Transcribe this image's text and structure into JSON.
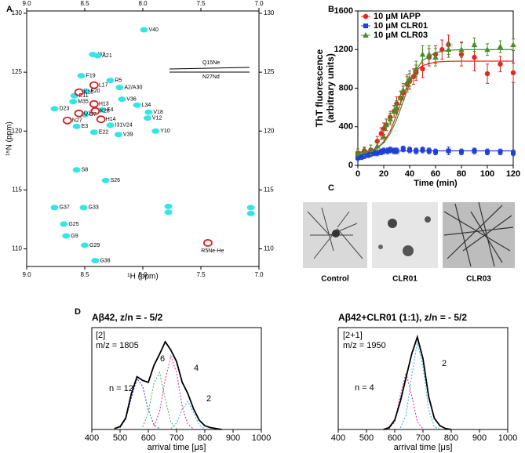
{
  "panel_labels": [
    "A",
    "B",
    "C",
    "D"
  ],
  "micrographs": {
    "labels": [
      "Control",
      "CLR01",
      "CLR03"
    ]
  },
  "chart_data": [
    {
      "type": "scatter",
      "xlabel": "¹H (ppm)",
      "ylabel": "¹⁵N (ppm)",
      "xlim": [
        9,
        7
      ],
      "ylim": [
        108.5,
        130.2
      ],
      "xticks": [
        {
          "value": 9,
          "label": "9.0"
        },
        8.5,
        {
          "value": 8,
          "label": "8.0"
        },
        7.5,
        {
          "value": 7,
          "label": "7.0"
        }
      ],
      "yticks": [
        110,
        115,
        120,
        125,
        130
      ],
      "mirror_ticks": true,
      "xtick_labels_top": true,
      "ytick_labels_right": true,
      "annotations": [
        "Q15Ne",
        "N27Nd"
      ],
      "series": [
        {
          "color": "#33e6e6",
          "marker": "blob",
          "label_color": "#000000",
          "labels": [
            "G38",
            "G29",
            "G9",
            "G25",
            "G37",
            "G33",
            "S26",
            "S8",
            "V39",
            "Y10",
            "E22",
            "E3",
            "I31V24",
            "V12",
            "V18",
            "L34",
            "V36",
            "F4",
            "D7",
            "M35",
            "D23",
            "F20",
            "E11",
            "A2/A30",
            "R5",
            "F19",
            "I32",
            "A21",
            "V40"
          ],
          "x": [
            8.41,
            8.5,
            8.66,
            8.68,
            8.76,
            8.51,
            8.32,
            8.57,
            8.21,
            7.89,
            8.42,
            8.57,
            8.28,
            7.96,
            7.95,
            8.05,
            8.18,
            8.35,
            8.5,
            8.6,
            8.76,
            8.49,
            8.59,
            8.2,
            8.28,
            8.53,
            8.43,
            8.39,
            7.99
          ],
          "values": [
            109.0,
            110.3,
            111.1,
            112.1,
            113.5,
            113.5,
            115.8,
            116.7,
            119.7,
            120.0,
            119.9,
            120.4,
            120.5,
            121.1,
            121.6,
            122.2,
            122.7,
            121.8,
            121.4,
            122.5,
            121.9,
            123.4,
            123.0,
            123.7,
            124.3,
            124.7,
            126.5,
            126.4,
            128.6
          ]
        },
        {
          "color": "#33e6e6",
          "marker": "blob",
          "x": [
            7.78,
            7.07,
            7.78,
            7.07
          ],
          "values": [
            113.1,
            113.0,
            113.6,
            113.5
          ]
        },
        {
          "color": "#d62020",
          "marker": "ring",
          "label_color": "#d62020",
          "labels": [
            "R5Ne-He",
            "N27",
            "Q15",
            "K28",
            "H14",
            "H13",
            "K16",
            "L17"
          ],
          "x": [
            7.44,
            8.65,
            8.55,
            8.41,
            8.36,
            8.42,
            8.55,
            8.42
          ],
          "values": [
            110.5,
            120.9,
            121.5,
            121.7,
            121.0,
            122.3,
            123.3,
            123.9
          ]
        }
      ]
    },
    {
      "type": "scatter",
      "xlabel": "Time (min)",
      "ylabel": [
        "ThT fluorescence",
        "(arbitrary units)"
      ],
      "xlim": [
        0,
        120
      ],
      "ylim": [
        0,
        1600
      ],
      "xticks": [
        0,
        20,
        40,
        60,
        80,
        100,
        120
      ],
      "yticks": [
        0,
        400,
        800,
        1200,
        1600
      ],
      "legend": "upper left",
      "series": [
        {
          "name": "10 μM IAPP",
          "color": "#e3261f",
          "marker": "circle",
          "x": [
            0,
            5,
            10,
            15,
            18,
            20,
            22,
            25,
            28,
            30,
            33,
            35,
            38,
            40,
            43,
            45,
            50,
            55,
            60,
            65,
            70,
            80,
            90,
            100,
            110,
            120
          ],
          "values": [
            130,
            150,
            160,
            250,
            330,
            380,
            420,
            500,
            560,
            640,
            700,
            750,
            840,
            870,
            920,
            960,
            1000,
            1120,
            1150,
            1200,
            1250,
            1150,
            1120,
            950,
            1050,
            960
          ],
          "errors": [
            40,
            40,
            50,
            50,
            60,
            60,
            60,
            60,
            60,
            70,
            70,
            70,
            80,
            80,
            80,
            80,
            90,
            90,
            90,
            100,
            100,
            120,
            140,
            100,
            80,
            100
          ]
        },
        {
          "name": "10 μM CLR01",
          "color": "#1f3fd6",
          "marker": "square",
          "x": [
            0,
            3,
            5,
            8,
            10,
            13,
            15,
            18,
            20,
            23,
            25,
            28,
            30,
            35,
            40,
            45,
            50,
            55,
            60,
            70,
            80,
            90,
            100,
            110,
            120
          ],
          "values": [
            80,
            90,
            100,
            110,
            120,
            130,
            130,
            140,
            150,
            150,
            160,
            150,
            150,
            170,
            160,
            150,
            160,
            150,
            140,
            150,
            140,
            150,
            140,
            140,
            130
          ],
          "errors": [
            30,
            30,
            30,
            30,
            30,
            30,
            30,
            30,
            30,
            30,
            30,
            30,
            30,
            30,
            30,
            30,
            30,
            30,
            30,
            40,
            30,
            30,
            30,
            30,
            30
          ]
        },
        {
          "name": "10 μM CLR03",
          "color": "#4a8c2a",
          "marker": "triangle",
          "x": [
            0,
            5,
            10,
            15,
            20,
            22,
            25,
            28,
            30,
            33,
            35,
            38,
            40,
            45,
            50,
            55,
            60,
            70,
            80,
            90,
            100,
            110,
            120
          ],
          "values": [
            130,
            140,
            160,
            200,
            300,
            420,
            480,
            560,
            600,
            700,
            780,
            860,
            900,
            1000,
            1150,
            1150,
            1120,
            1200,
            1200,
            1250,
            1200,
            1230,
            1250
          ],
          "errors": [
            40,
            40,
            50,
            50,
            60,
            60,
            60,
            60,
            70,
            70,
            70,
            80,
            80,
            80,
            90,
            90,
            90,
            80,
            80,
            70,
            60,
            60,
            60
          ]
        },
        {
          "color": "#e3261f",
          "style": "line",
          "x": [
            0,
            10,
            15,
            20,
            25,
            30,
            35,
            40,
            45,
            50,
            60,
            70,
            80,
            100,
            120
          ],
          "values": [
            135,
            154,
            183,
            242,
            356,
            526,
            721,
            882,
            983,
            1035,
            1071,
            1078,
            1080,
            1080,
            1080
          ]
        },
        {
          "color": "#4a8c2a",
          "style": "line",
          "x": [
            0,
            10,
            15,
            20,
            25,
            30,
            35,
            40,
            45,
            50,
            60,
            70,
            80,
            100,
            120
          ],
          "values": [
            127,
            150,
            179,
            234,
            329,
            475,
            660,
            845,
            991,
            1087,
            1170,
            1193,
            1199,
            1200,
            1200
          ]
        },
        {
          "color": "#1f3fd6",
          "style": "line",
          "x": [
            0,
            10,
            20,
            40,
            120
          ],
          "values": [
            90,
            130,
            148,
            150,
            150
          ]
        }
      ]
    },
    {
      "type": "line",
      "title": "Aβ42, z/n = - 5/2",
      "xlabel": "arrival time [μs]",
      "xlim": [
        400,
        1000
      ],
      "ylim": [
        0,
        1.08
      ],
      "xticks": [
        400,
        500,
        600,
        700,
        800,
        900,
        1000
      ],
      "annotations": [
        "[2]",
        "m/z = 1805",
        "n = 12",
        "6",
        "4",
        "2"
      ],
      "series": [
        {
          "color": "#2b3a9e",
          "style": "dashed",
          "x": [
            500,
            520,
            540,
            560,
            580,
            600,
            620,
            640
          ],
          "values": [
            0.019,
            0.109,
            0.334,
            0.539,
            0.459,
            0.206,
            0.049,
            0.006
          ]
        },
        {
          "color": "#39b54a",
          "style": "dashed",
          "x": [
            580,
            600,
            620,
            640,
            660,
            680,
            700
          ],
          "values": [
            0.027,
            0.175,
            0.492,
            0.604,
            0.325,
            0.076,
            0.008
          ]
        },
        {
          "color": "#d6289e",
          "style": "dashed",
          "x": [
            620,
            640,
            660,
            680,
            700,
            720,
            740,
            760
          ],
          "values": [
            0.036,
            0.19,
            0.53,
            0.778,
            0.602,
            0.246,
            0.053,
            0.006
          ]
        },
        {
          "color": "#29abe2",
          "style": "dashed",
          "x": [
            680,
            700,
            720,
            740,
            760,
            780,
            800
          ],
          "values": [
            0.009,
            0.068,
            0.215,
            0.299,
            0.182,
            0.049,
            0.006
          ]
        },
        {
          "color": "#000000",
          "style": "line",
          "x": [
            480,
            500,
            520,
            540,
            560,
            580,
            600,
            620,
            640,
            660,
            680,
            700,
            720,
            740,
            760,
            780,
            800,
            820,
            840,
            860
          ],
          "values": [
            0.01,
            0.03,
            0.12,
            0.38,
            0.56,
            0.52,
            0.5,
            0.68,
            0.8,
            0.93,
            0.84,
            0.72,
            0.5,
            0.38,
            0.22,
            0.1,
            0.04,
            0.02,
            0.01,
            0
          ]
        }
      ]
    },
    {
      "type": "line",
      "title": "Aβ42+CLR01 (1:1), z/n = - 5/2",
      "xlabel": "arrival time [μs]",
      "xlim": [
        400,
        1000
      ],
      "ylim": [
        0,
        1.08
      ],
      "xticks": [
        400,
        500,
        600,
        700,
        800,
        900,
        1000
      ],
      "annotations": [
        "[2+1]",
        "m/z = 1950",
        "n = 4",
        "2"
      ],
      "series": [
        {
          "color": "#d6289e",
          "style": "dashed",
          "x": [
            580,
            600,
            620,
            640,
            660,
            680,
            700
          ],
          "values": [
            0.007,
            0.081,
            0.364,
            0.6,
            0.364,
            0.081,
            0.007
          ]
        },
        {
          "color": "#29abe2",
          "style": "dashed",
          "x": [
            620,
            640,
            660,
            680,
            700,
            720,
            740,
            760
          ],
          "values": [
            0.018,
            0.151,
            0.564,
            0.926,
            0.665,
            0.209,
            0.029,
            0.002
          ]
        },
        {
          "color": "#000000",
          "style": "line",
          "x": [
            560,
            580,
            600,
            620,
            640,
            660,
            680,
            700,
            720,
            740,
            760,
            780,
            800
          ],
          "values": [
            0,
            0.02,
            0.1,
            0.3,
            0.55,
            0.8,
            0.98,
            0.75,
            0.35,
            0.12,
            0.04,
            0.01,
            0
          ]
        }
      ]
    }
  ]
}
